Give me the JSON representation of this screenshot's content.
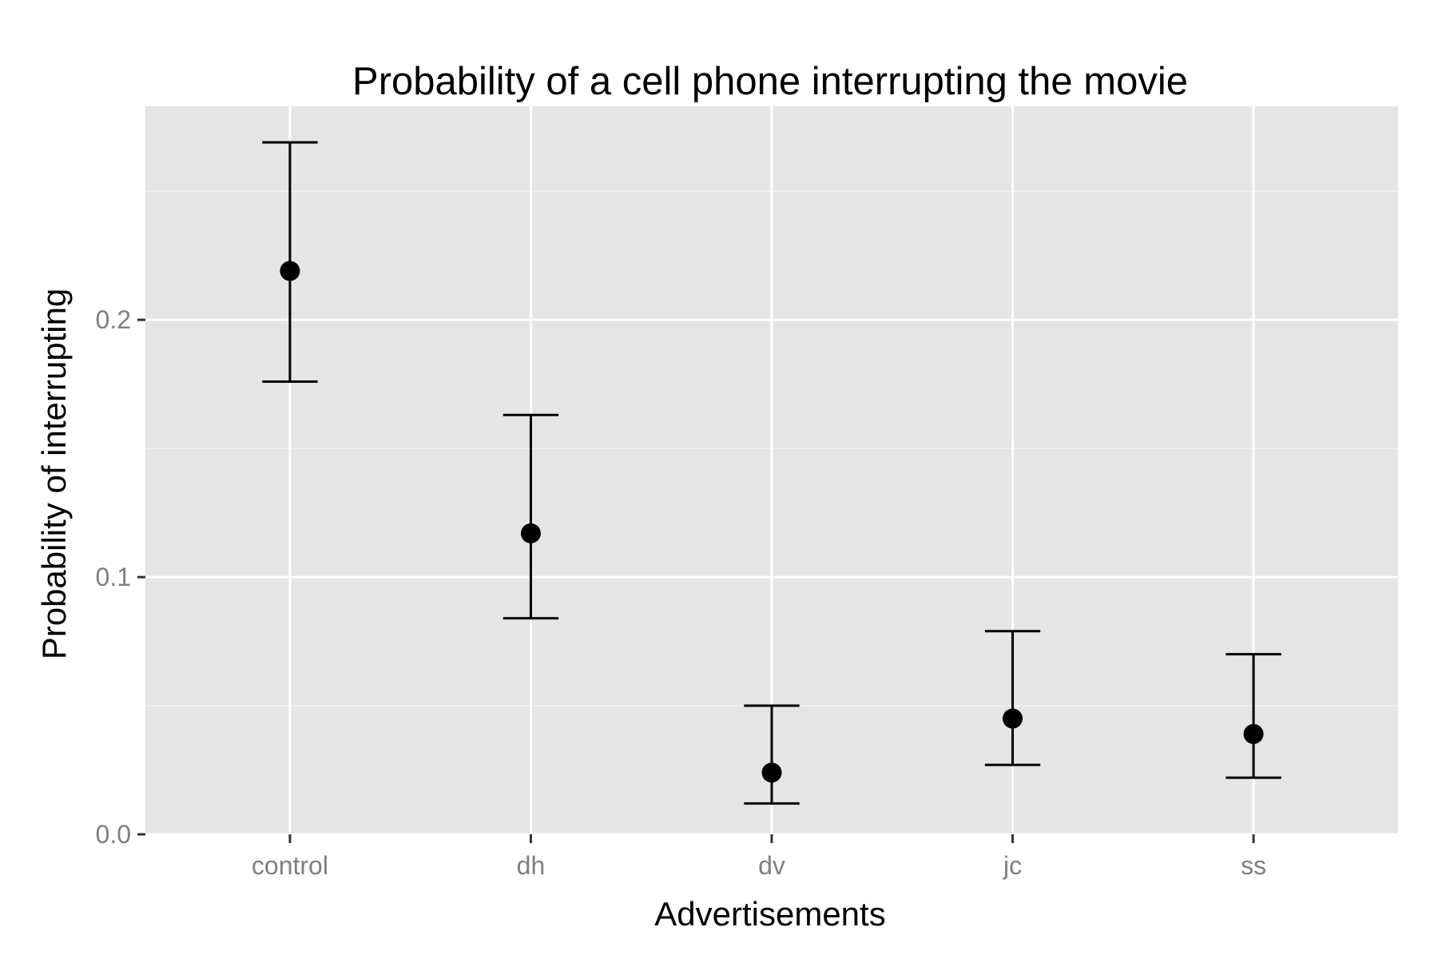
{
  "chart_data": {
    "type": "scatter",
    "title": "Probability of a cell phone interrupting the movie",
    "xlabel": "Advertisements",
    "ylabel": "Probability of interrupting",
    "categories": [
      "control",
      "dh",
      "dv",
      "jc",
      "ss"
    ],
    "series": [
      {
        "values": [
          0.219,
          0.117,
          0.024,
          0.045,
          0.039
        ],
        "lower": [
          0.176,
          0.084,
          0.012,
          0.027,
          0.022
        ],
        "upper": [
          0.269,
          0.163,
          0.05,
          0.079,
          0.07
        ]
      }
    ],
    "ylim": [
      0,
      0.283
    ],
    "yticks": [
      0.0,
      0.1,
      0.2
    ],
    "ytick_labels": [
      "0.0",
      "0.1",
      "0.2"
    ],
    "grid": true,
    "colors": {
      "panel": "#e5e5e5",
      "grid": "#ffffff",
      "marks": "#000000",
      "tick_text": "#7f7f7f"
    }
  }
}
